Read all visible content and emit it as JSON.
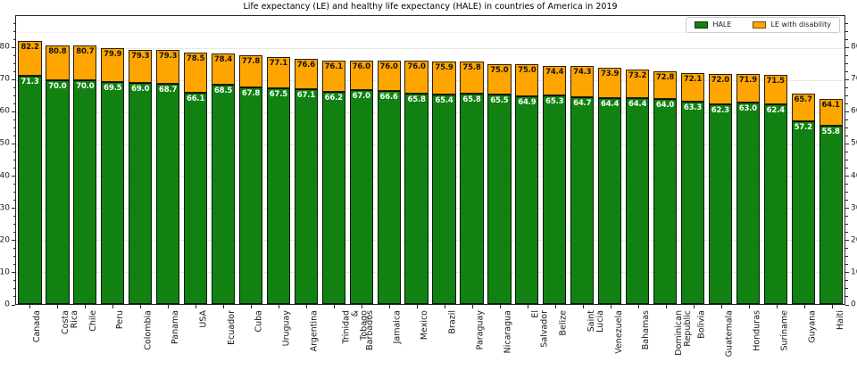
{
  "title": "Life expectancy (LE) and healthy life expectancy (HALE) in countries of America in 2019",
  "colors": {
    "hale": "#118211",
    "le_with_disability": "#ffa500",
    "bar_edge": "rgba(0,0,0,0.82)",
    "grid": "#e8e8e8",
    "spine": "#262626"
  },
  "legend": {
    "items": [
      {
        "label": "HALE",
        "color": "#118211"
      },
      {
        "label": "LE with disability",
        "color": "#ffa500"
      }
    ]
  },
  "chart_data": {
    "type": "bar",
    "stacked": true,
    "title": "Life expectancy (LE) and healthy life expectancy (HALE) in countries of America in 2019",
    "categories": [
      "Canada",
      "Costa Rica",
      "Chile",
      "Peru",
      "Colombia",
      "Panama",
      "USA",
      "Ecuador",
      "Cuba",
      "Uruguay",
      "Argentina",
      "Trinidad &\nTobago",
      "Barbados",
      "Jamaica",
      "Mexico",
      "Brazil",
      "Paraguay",
      "Nicaragua",
      "El Salvador",
      "Belize",
      "Saint Lucia",
      "Venezuela",
      "Bahamas",
      "Dominican\nRepublic",
      "Bolivia",
      "Guatemala",
      "Honduras",
      "Suriname",
      "Guyana",
      "Haiti"
    ],
    "series": [
      {
        "name": "HALE",
        "values": [
          71.3,
          70.0,
          70.0,
          69.5,
          69.0,
          68.7,
          66.1,
          68.5,
          67.8,
          67.5,
          67.1,
          66.2,
          67.0,
          66.6,
          65.8,
          65.4,
          65.8,
          65.5,
          64.9,
          65.3,
          64.7,
          64.4,
          64.4,
          64.0,
          63.3,
          62.3,
          63.0,
          62.4,
          57.2,
          55.8
        ]
      },
      {
        "name": "LE",
        "values": [
          82.2,
          80.8,
          80.7,
          79.9,
          79.3,
          79.3,
          78.5,
          78.4,
          77.8,
          77.1,
          76.6,
          76.1,
          76.0,
          76.0,
          76.0,
          75.9,
          75.8,
          75.0,
          75.0,
          74.4,
          74.3,
          73.9,
          73.2,
          72.8,
          72.1,
          72.0,
          71.9,
          71.5,
          65.7,
          64.1
        ]
      }
    ],
    "legend_entries": [
      "HALE",
      "LE with disability"
    ],
    "legend_position": "upper right",
    "xlabel": "",
    "ylabel": "",
    "ylim": [
      0,
      90
    ],
    "yticks": [
      0,
      10,
      20,
      30,
      40,
      50,
      60,
      70,
      80
    ],
    "minor_tick_step": 2.5,
    "grid": true,
    "bar_label_note": "orange segment labeled with total LE (dark text), green segment labeled with HALE (white text)"
  }
}
